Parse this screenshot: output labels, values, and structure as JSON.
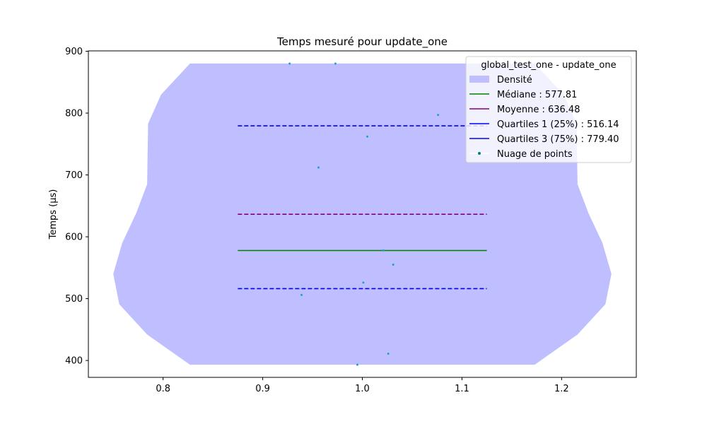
{
  "chart_data": {
    "type": "violin",
    "title": "Temps mesuré pour update_one",
    "xlabel": "",
    "ylabel": "Temps (µs)",
    "xlim": [
      0.725,
      1.275
    ],
    "ylim": [
      372.7,
      900.6
    ],
    "xticks": [
      0.8,
      0.9,
      1.0,
      1.1,
      1.2
    ],
    "xtick_labels": [
      "0.8",
      "0.9",
      "1.0",
      "1.1",
      "1.2"
    ],
    "yticks": [
      400,
      500,
      600,
      700,
      800,
      900
    ],
    "ytick_labels": [
      "400",
      "500",
      "600",
      "700",
      "800",
      "900"
    ],
    "grid": false,
    "legend_position": "upper right",
    "legend_title": "global_test_one - update_one",
    "density": {
      "name": "Densité",
      "color": "#bfbfff",
      "center": 1.0,
      "profile": [
        {
          "y": 393.1,
          "half_width": 0.173
        },
        {
          "y": 442.0,
          "half_width": 0.216
        },
        {
          "y": 491.0,
          "half_width": 0.244
        },
        {
          "y": 540.0,
          "half_width": 0.25
        },
        {
          "y": 590.0,
          "half_width": 0.241
        },
        {
          "y": 638.0,
          "half_width": 0.227
        },
        {
          "y": 685.0,
          "half_width": 0.216
        },
        {
          "y": 783.0,
          "half_width": 0.215
        },
        {
          "y": 830.0,
          "half_width": 0.202
        },
        {
          "y": 880.1,
          "half_width": 0.173
        }
      ]
    },
    "lines": [
      {
        "name": "Médiane : 577.81",
        "value": 577.81,
        "color": "#008000",
        "style": "solid",
        "x_range": [
          0.875,
          1.125
        ]
      },
      {
        "name": "Moyenne : 636.48",
        "value": 636.48,
        "color": "#800080",
        "style": "dashed",
        "x_range": [
          0.875,
          1.125
        ]
      },
      {
        "name": "Quartiles 1 (25%) : 516.14",
        "value": 516.14,
        "color": "#0000ff",
        "style": "dashed",
        "x_range": [
          0.875,
          1.125
        ]
      },
      {
        "name": "Quartiles 3 (75%) : 779.40",
        "value": 779.4,
        "color": "#0000ff",
        "style": "dashed",
        "x_range": [
          0.875,
          1.125
        ]
      }
    ],
    "points": {
      "name": "Nuage de points",
      "color": "#1f9ed6",
      "legend_color": "#008080",
      "values": [
        {
          "x": 0.927,
          "y": 880.1
        },
        {
          "x": 0.973,
          "y": 880.1
        },
        {
          "x": 1.076,
          "y": 797.0
        },
        {
          "x": 1.005,
          "y": 762.0
        },
        {
          "x": 0.956,
          "y": 712.0
        },
        {
          "x": 1.021,
          "y": 578.0
        },
        {
          "x": 1.031,
          "y": 555.0
        },
        {
          "x": 1.001,
          "y": 526.0
        },
        {
          "x": 0.939,
          "y": 506.0
        },
        {
          "x": 1.026,
          "y": 411.0
        },
        {
          "x": 0.995,
          "y": 393.1
        }
      ]
    }
  }
}
